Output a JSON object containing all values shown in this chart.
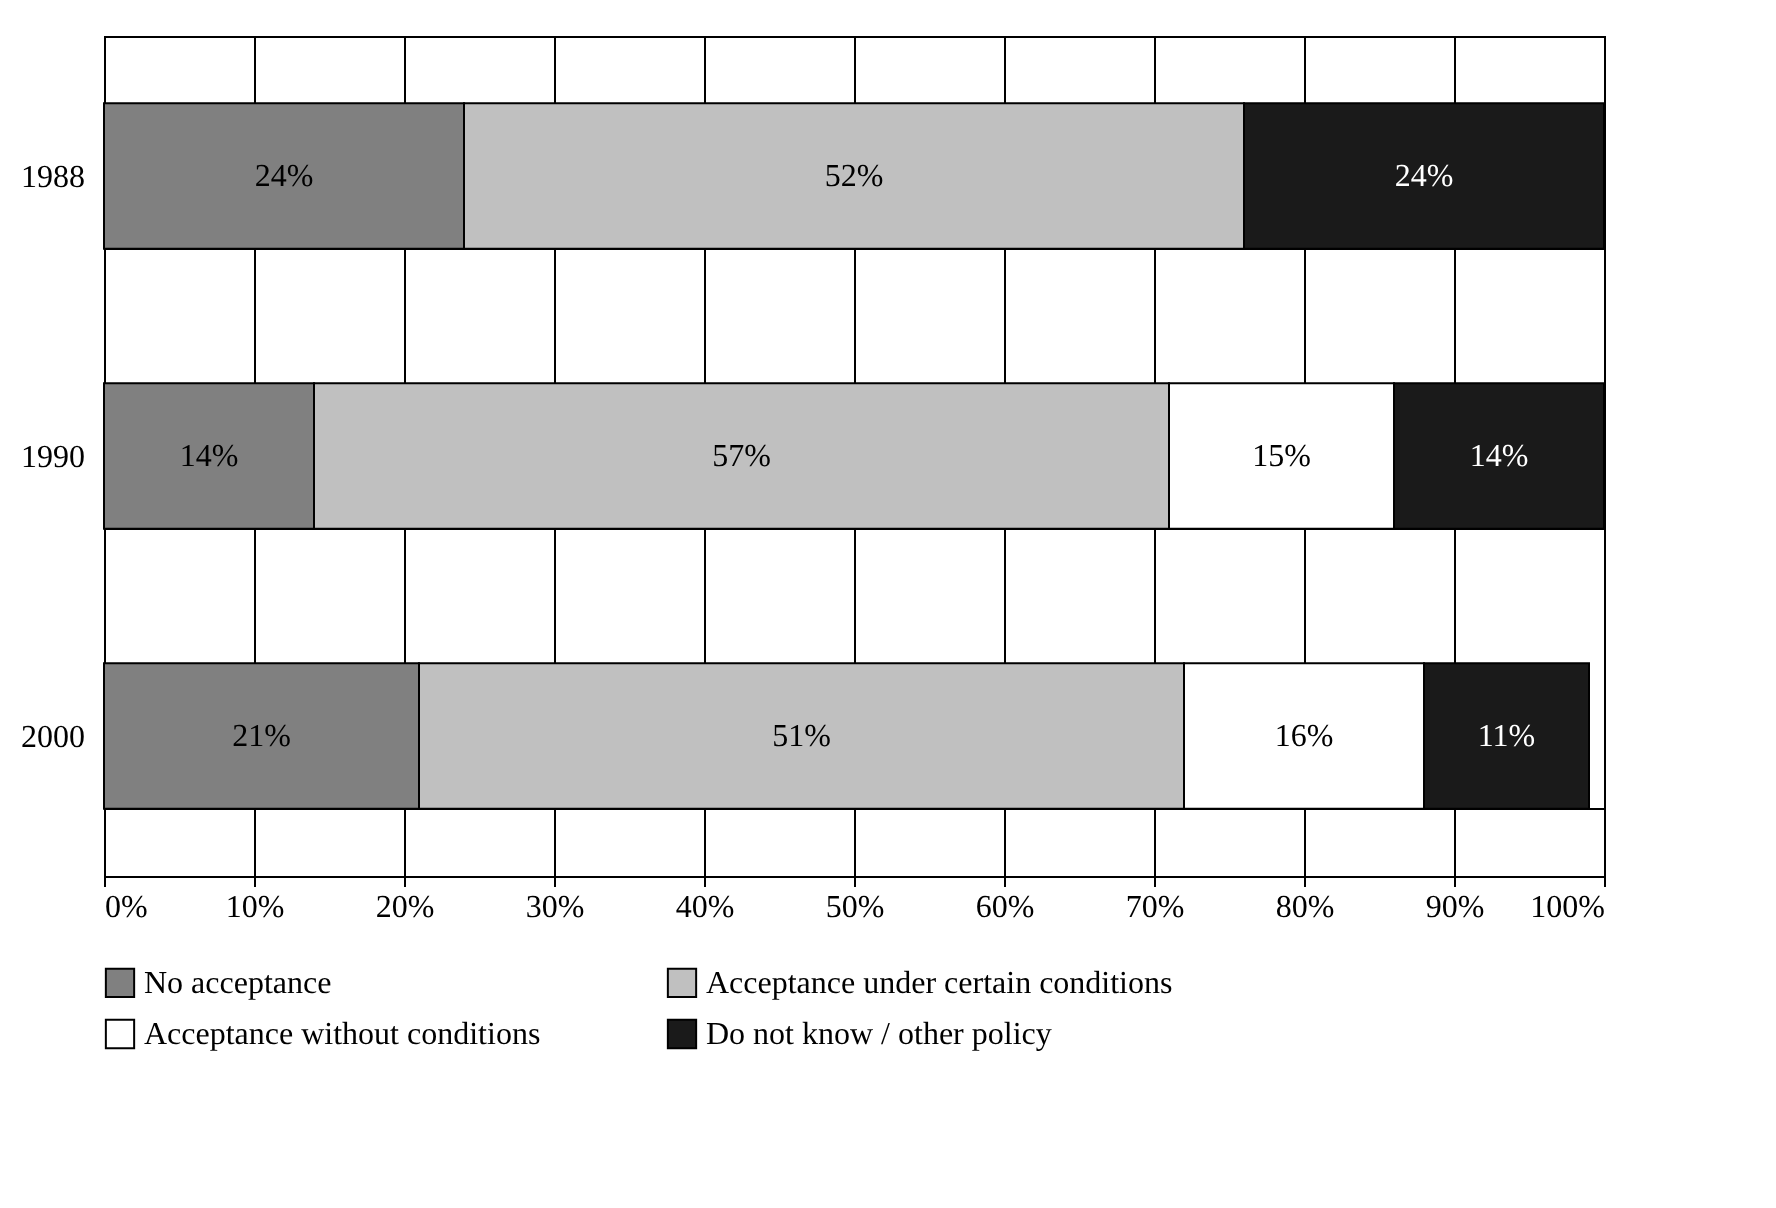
{
  "chart_data": {
    "type": "bar",
    "orientation": "horizontal",
    "stacked": true,
    "categories": [
      "1988",
      "1990",
      "2000"
    ],
    "series": [
      {
        "name": "No acceptance",
        "color": "#808080",
        "values": [
          24,
          14,
          21
        ],
        "value_labels": [
          "24%",
          "14%",
          "21%"
        ]
      },
      {
        "name": "Acceptance under certain conditions",
        "color": "#c0c0c0",
        "values": [
          52,
          57,
          51
        ],
        "value_labels": [
          "52%",
          "57%",
          "51%"
        ]
      },
      {
        "name": "Acceptance without conditions",
        "color": "#ffffff",
        "values": [
          0,
          15,
          16
        ],
        "value_labels": [
          null,
          "15%",
          "16%"
        ]
      },
      {
        "name": "Do not know / other policy",
        "color": "#1a1a1a",
        "values": [
          24,
          14,
          11
        ],
        "value_labels": [
          "24%",
          "14%",
          "11%"
        ]
      }
    ],
    "xlim": [
      0,
      100
    ],
    "xticks": [
      {
        "value": 0,
        "label": "0%"
      },
      {
        "value": 10,
        "label": "10%"
      },
      {
        "value": 20,
        "label": "20%"
      },
      {
        "value": 30,
        "label": "30%"
      },
      {
        "value": 40,
        "label": "40%"
      },
      {
        "value": 50,
        "label": "50%"
      },
      {
        "value": 60,
        "label": "60%"
      },
      {
        "value": 70,
        "label": "70%"
      },
      {
        "value": 80,
        "label": "80%"
      },
      {
        "value": 90,
        "label": "90%"
      },
      {
        "value": 100,
        "label": "100%"
      }
    ],
    "grid": true,
    "legend": "bottom"
  }
}
